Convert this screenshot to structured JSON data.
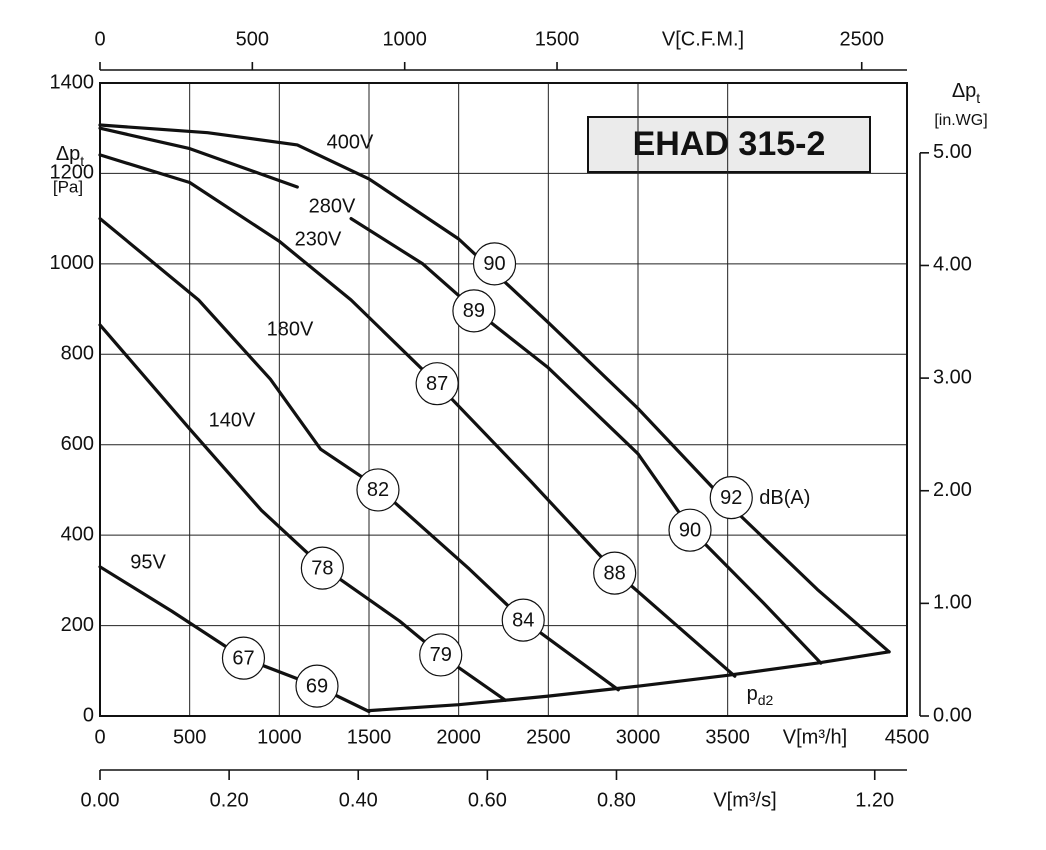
{
  "chart_data": {
    "type": "line",
    "title": "EHAD 315-2",
    "xlabel": "V[m³/h]",
    "ylabel": {
      "text": "Δp",
      "sub": "t"
    },
    "ylabel_unit": "[Pa]",
    "y2label": {
      "text": "Δp",
      "sub": "t"
    },
    "y2label_unit": "[in.WG]",
    "xlim": [
      0,
      4500
    ],
    "xticks": [
      0,
      500,
      1000,
      1500,
      2000,
      2500,
      3000,
      3500,
      4500
    ],
    "ylim": [
      0,
      1400
    ],
    "yticks": [
      0,
      200,
      400,
      600,
      800,
      1000,
      1200,
      1400
    ],
    "y2lim": [
      0,
      5.62
    ],
    "y2ticks": [
      {
        "value": 0,
        "label": "0.00"
      },
      {
        "value": 1,
        "label": "1.00"
      },
      {
        "value": 2,
        "label": "2.00"
      },
      {
        "value": 3,
        "label": "3.00"
      },
      {
        "value": 4,
        "label": "4.00"
      },
      {
        "value": 5,
        "label": "5.00"
      }
    ],
    "top_axis": {
      "label": "V[C.F.M.]",
      "xlim": [
        0,
        2648.6
      ],
      "xticks": [
        0,
        500,
        1000,
        1500,
        2500
      ]
    },
    "bottom2_axis": {
      "label": "V[m³/s]",
      "xlim": [
        0,
        1.25
      ],
      "xticks": [
        {
          "value": 0,
          "label": "0.00"
        },
        {
          "value": 0.2,
          "label": "0.20"
        },
        {
          "value": 0.4,
          "label": "0.40"
        },
        {
          "value": 0.6,
          "label": "0.60"
        },
        {
          "value": 0.8,
          "label": "0.80"
        },
        {
          "value": 1.2,
          "label": "1.20"
        }
      ]
    },
    "grid": true,
    "series": [
      {
        "name": "400V",
        "color": "#111111",
        "x": [
          0,
          600,
          1100,
          1500,
          2000,
          2500,
          3000,
          3500,
          4000,
          4400
        ],
        "values": [
          1307,
          1290,
          1263,
          1188,
          1055,
          870,
          680,
          470,
          280,
          142
        ]
      },
      {
        "name": "280V",
        "color": "#111111",
        "x": [
          0,
          500,
          1100,
          1250,
          1400,
          1800,
          2100,
          2500,
          3000,
          3300,
          3700,
          4020
        ],
        "values": [
          1300,
          1255,
          1170,
          null,
          1100,
          1000,
          895,
          770,
          580,
          410,
          250,
          117
        ]
      },
      {
        "name": "230V",
        "color": "#111111",
        "x": [
          0,
          500,
          1000,
          1400,
          1880,
          2400,
          2870,
          3540
        ],
        "values": [
          1241,
          1180,
          1050,
          920,
          735,
          520,
          320,
          88
        ]
      },
      {
        "name": "180V",
        "color": "#111111",
        "x": [
          0,
          550,
          950,
          1230,
          1550,
          2060,
          2360,
          2890
        ],
        "values": [
          1100,
          920,
          745,
          590,
          505,
          325,
          212,
          58
        ]
      },
      {
        "name": "140V",
        "color": "#111111",
        "x": [
          0,
          500,
          900,
          1240,
          1670,
          1900,
          2260
        ],
        "values": [
          865,
          635,
          455,
          330,
          210,
          135,
          35
        ]
      },
      {
        "name": "95V",
        "color": "#111111",
        "x": [
          0,
          400,
          800,
          1210,
          1500
        ],
        "values": [
          330,
          232,
          128,
          66,
          10
        ]
      },
      {
        "name": "p",
        "sub": "d2",
        "color": "#111111",
        "x": [
          1500,
          2000,
          2500,
          3000,
          3500,
          4000,
          4400
        ],
        "values": [
          12,
          25,
          44,
          66,
          90,
          117,
          142
        ]
      }
    ],
    "db_unit": "dB(A)",
    "db_marks": [
      {
        "x": 2200,
        "y": 1000,
        "value": 90
      },
      {
        "x": 2085,
        "y": 896,
        "value": 89
      },
      {
        "x": 1880,
        "y": 735,
        "value": 87
      },
      {
        "x": 1550,
        "y": 500,
        "value": 82
      },
      {
        "x": 1240,
        "y": 327,
        "value": 78
      },
      {
        "x": 800,
        "y": 128,
        "value": 67
      },
      {
        "x": 1210,
        "y": 66,
        "value": 69
      },
      {
        "x": 1900,
        "y": 135,
        "value": 79
      },
      {
        "x": 2360,
        "y": 212,
        "value": 84
      },
      {
        "x": 2870,
        "y": 316,
        "value": 88
      },
      {
        "x": 3290,
        "y": 411,
        "value": 90
      },
      {
        "x": 3520,
        "y": 483,
        "value": 92
      }
    ]
  }
}
